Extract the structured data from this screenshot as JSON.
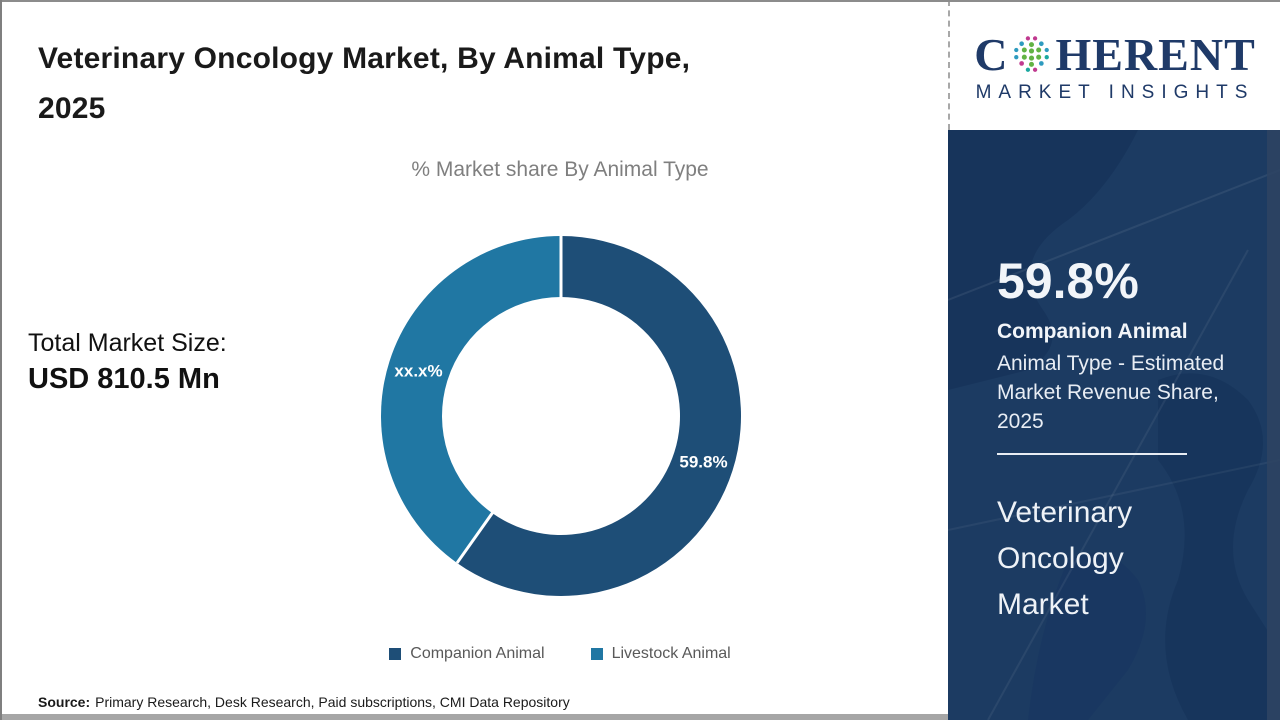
{
  "header": {
    "title_line1": "Veterinary Oncology Market, By Animal Type,",
    "title_line2": "2025"
  },
  "logo": {
    "word_start": "C",
    "word_end": "HERENT",
    "tagline": "MARKET INSIGHTS"
  },
  "total_market": {
    "label": "Total Market Size:",
    "value": "USD 810.5 Mn"
  },
  "chart_data": {
    "type": "pie",
    "donut": true,
    "title": "% Market share By Animal Type",
    "categories": [
      "Companion Animal",
      "Livestock Animal"
    ],
    "values": [
      59.8,
      40.2
    ],
    "value_labels": [
      "59.8%",
      "xx.x%"
    ],
    "colors": [
      "#1e4e77",
      "#2077a3"
    ],
    "legend_position": "bottom",
    "start_angle_deg": 0,
    "direction": "clockwise"
  },
  "sidebar": {
    "stat_value": "59.8%",
    "stat_segment": "Companion Animal",
    "stat_desc": "Animal Type - Estimated Market Revenue Share, 2025",
    "market_name": "Veterinary Oncology Market"
  },
  "source": {
    "label": "Source:",
    "text": "Primary Research, Desk Research, Paid subscriptions, CMI Data Repository"
  },
  "colors": {
    "companion_animal": "#1e4e77",
    "livestock_animal": "#2077a3",
    "sidebar_navy": "#1c3b62",
    "logo_navy": "#1f3a68",
    "subtitle_gray": "#7f7f7f"
  }
}
